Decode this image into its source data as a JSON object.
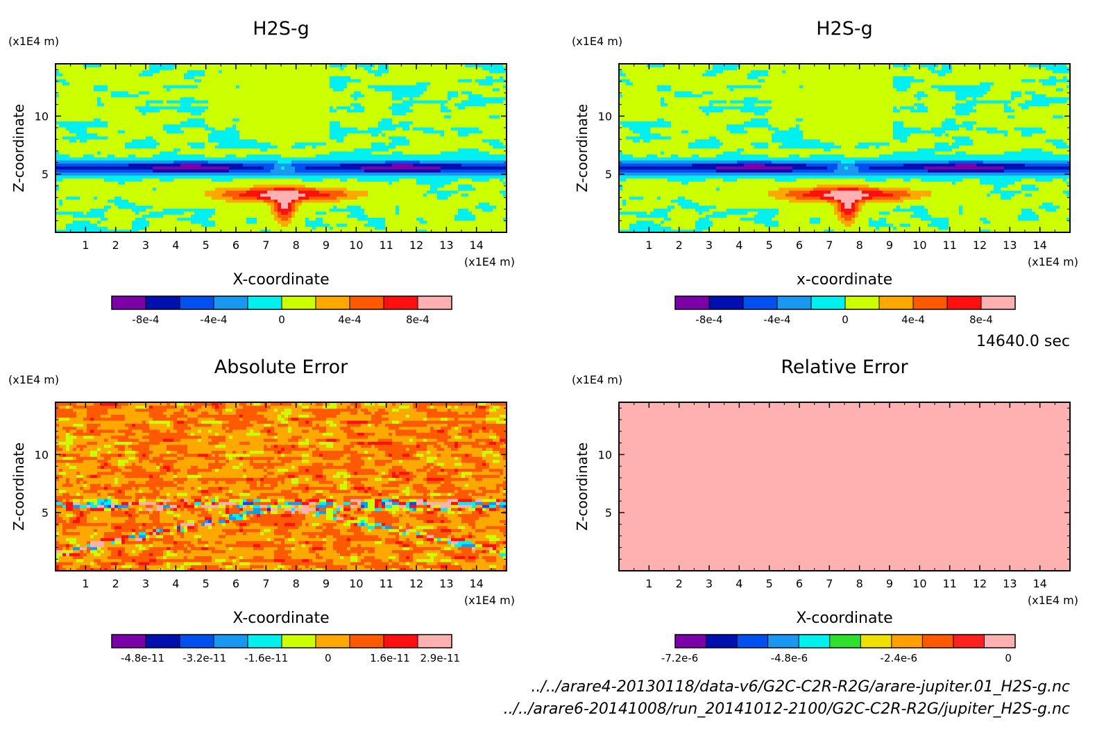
{
  "timestamp": "14640.0 sec",
  "files": [
    "../../arare4-20130118/data-v6/G2C-C2R-R2G/arare-jupiter.01_H2S-g.nc",
    "../../arare6-20141008/run_20141012-2100/G2C-C2R-R2G/jupiter_H2S-g.nc"
  ],
  "chart_data": [
    {
      "type": "heatmap",
      "title": "H2S-g",
      "xlabel": "X-coordinate",
      "ylabel": "Z-coordinate",
      "x_unit": "(x1E4 m)",
      "y_unit": "(x1E4 m)",
      "xlim": [
        0,
        15
      ],
      "ylim": [
        0,
        14.5
      ],
      "x_ticks": [
        "1",
        "2",
        "3",
        "4",
        "5",
        "6",
        "7",
        "8",
        "9",
        "10",
        "11",
        "12",
        "13",
        "14"
      ],
      "y_ticks": [
        "5",
        "10"
      ],
      "field": "h2s",
      "colorbar": {
        "colors": [
          "#7a00a8",
          "#0010b0",
          "#0050f0",
          "#1898f0",
          "#00f0f0",
          "#ccff00",
          "#ffa800",
          "#ff5a00",
          "#ff1010",
          "#ffb0b0"
        ],
        "tick_labels": [
          "-8e-4",
          "-4e-4",
          "0",
          "4e-4",
          "8e-4"
        ],
        "tick_values": [
          -0.0008,
          -0.0004,
          0,
          0.0004,
          0.0008
        ],
        "range": [
          -0.001,
          0.001
        ]
      }
    },
    {
      "type": "heatmap",
      "title": "H2S-g",
      "xlabel": "x-coordinate",
      "ylabel": "Z-coordinate",
      "x_unit": "(x1E4 m)",
      "y_unit": "(x1E4 m)",
      "xlim": [
        0,
        15
      ],
      "ylim": [
        0,
        14.5
      ],
      "x_ticks": [
        "1",
        "2",
        "3",
        "4",
        "5",
        "6",
        "7",
        "8",
        "9",
        "10",
        "11",
        "12",
        "13",
        "14"
      ],
      "y_ticks": [
        "5",
        "10"
      ],
      "field": "h2s",
      "colorbar": {
        "colors": [
          "#7a00a8",
          "#0010b0",
          "#0050f0",
          "#1898f0",
          "#00f0f0",
          "#ccff00",
          "#ffa800",
          "#ff5a00",
          "#ff1010",
          "#ffb0b0"
        ],
        "tick_labels": [
          "-8e-4",
          "-4e-4",
          "0",
          "4e-4",
          "8e-4"
        ],
        "tick_values": [
          -0.0008,
          -0.0004,
          0,
          0.0004,
          0.0008
        ],
        "range": [
          -0.001,
          0.001
        ]
      }
    },
    {
      "type": "heatmap",
      "title": "Absolute Error",
      "xlabel": "X-coordinate",
      "ylabel": "Z-coordinate",
      "x_unit": "(x1E4 m)",
      "y_unit": "(x1E4 m)",
      "xlim": [
        0,
        15
      ],
      "ylim": [
        0,
        14.5
      ],
      "x_ticks": [
        "1",
        "2",
        "3",
        "4",
        "5",
        "6",
        "7",
        "8",
        "9",
        "10",
        "11",
        "12",
        "13",
        "14"
      ],
      "y_ticks": [
        "5",
        "10"
      ],
      "field": "abs",
      "colorbar": {
        "colors": [
          "#7a00a8",
          "#0010b0",
          "#0050f0",
          "#1898f0",
          "#00f0f0",
          "#ccff00",
          "#ffa800",
          "#ff5a00",
          "#ff1010",
          "#ffb0b0"
        ],
        "tick_labels": [
          "-4.8e-11",
          "-3.2e-11",
          "-1.6e-11",
          "0",
          "1.6e-11",
          "2.9e-11"
        ],
        "tick_values": [
          -4.8e-11,
          -3.2e-11,
          -1.6e-11,
          0,
          1.6e-11,
          2.9e-11
        ],
        "range": [
          -5.6e-11,
          3.2e-11
        ]
      }
    },
    {
      "type": "heatmap",
      "title": "Relative Error",
      "xlabel": "X-coordinate",
      "ylabel": "Z-coordinate",
      "x_unit": "(x1E4 m)",
      "y_unit": "(x1E4 m)",
      "xlim": [
        0,
        15
      ],
      "ylim": [
        0,
        14.5
      ],
      "x_ticks": [
        "1",
        "2",
        "3",
        "4",
        "5",
        "6",
        "7",
        "8",
        "9",
        "10",
        "11",
        "12",
        "13",
        "14"
      ],
      "y_ticks": [
        "5",
        "10"
      ],
      "field": "rel",
      "colorbar": {
        "colors": [
          "#7a00a8",
          "#0010b0",
          "#0050f0",
          "#1898f0",
          "#00f0f0",
          "#30e030",
          "#f0e000",
          "#ffa000",
          "#ff5a00",
          "#ff2020",
          "#ffb0b0"
        ],
        "tick_labels": [
          "-7.2e-6",
          "-4.8e-6",
          "-2.4e-6",
          "0"
        ],
        "tick_values": [
          -7.2e-06,
          -4.8e-06,
          -2.4e-06,
          0
        ],
        "range": [
          -7.3e-06,
          1.5e-07
        ]
      }
    }
  ]
}
